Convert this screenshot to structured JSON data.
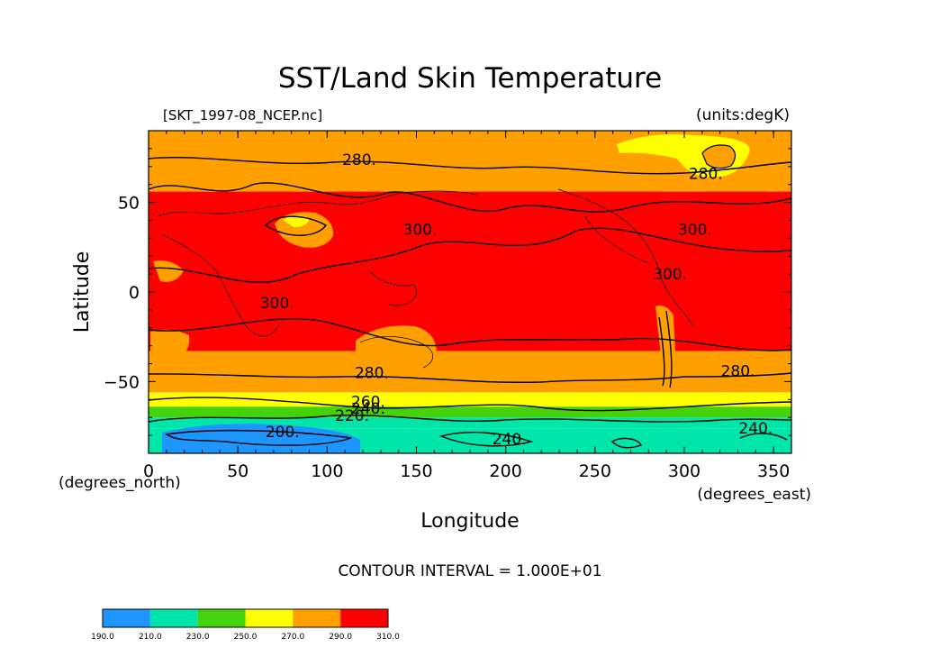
{
  "chart_data": {
    "type": "heatmap",
    "title": "SST/Land Skin Temperature",
    "source_label": "[SKT_1997-08_NCEP.nc]",
    "units_label": "(units:degK)",
    "xlabel": "Longitude",
    "ylabel": "Latitude",
    "x_unit_label": "(degrees_east)",
    "y_unit_label": "(degrees_north)",
    "xlim": [
      0,
      360
    ],
    "ylim": [
      -90,
      90
    ],
    "x_ticks": [
      0,
      50,
      100,
      150,
      200,
      250,
      300,
      350
    ],
    "y_ticks": [
      -50,
      0,
      50
    ],
    "contour_interval_label": "CONTOUR INTERVAL = 1.000E+01",
    "color_levels": [
      190,
      210,
      230,
      250,
      270,
      290,
      310
    ],
    "colorbar_labels": [
      "190.0",
      "210.0",
      "230.0",
      "250.0",
      "270.0",
      "290.0",
      "310.0"
    ],
    "colors": [
      "#1e96ff",
      "#00e6aa",
      "#46d20a",
      "#ffff00",
      "#ffa000",
      "#ff0000"
    ],
    "zonal_bands": [
      {
        "lat_from": 90,
        "lat_to": 56,
        "value_band": 5
      },
      {
        "lat_from": 56,
        "lat_to": -33,
        "value_band": 6
      },
      {
        "lat_from": -33,
        "lat_to": -56,
        "value_band": 5
      },
      {
        "lat_from": -56,
        "lat_to": -64,
        "value_band": 4
      },
      {
        "lat_from": -64,
        "lat_to": -70,
        "value_band": 3
      },
      {
        "lat_from": -70,
        "lat_to": -76,
        "value_band": 2
      },
      {
        "lat_from": -76,
        "lat_to": -90,
        "value_band": 2
      }
    ],
    "contour_labels": [
      {
        "text": "280.",
        "lon": 118,
        "lat": 71
      },
      {
        "text": "280.",
        "lon": 312,
        "lat": 63
      },
      {
        "text": "300.",
        "lon": 152,
        "lat": 32
      },
      {
        "text": "300.",
        "lon": 306,
        "lat": 32
      },
      {
        "text": "300.",
        "lon": 292,
        "lat": 7
      },
      {
        "text": "300.",
        "lon": 72,
        "lat": -9
      },
      {
        "text": "280.",
        "lon": 125,
        "lat": -48
      },
      {
        "text": "280.",
        "lon": 330,
        "lat": -47
      },
      {
        "text": "260.",
        "lon": 123,
        "lat": -64
      },
      {
        "text": "240.",
        "lon": 123,
        "lat": -68
      },
      {
        "text": "220.",
        "lon": 114,
        "lat": -72
      },
      {
        "text": "200.",
        "lon": 75,
        "lat": -81
      },
      {
        "text": "240.",
        "lon": 202,
        "lat": -85
      },
      {
        "text": "240.",
        "lon": 340,
        "lat": -79
      }
    ]
  }
}
